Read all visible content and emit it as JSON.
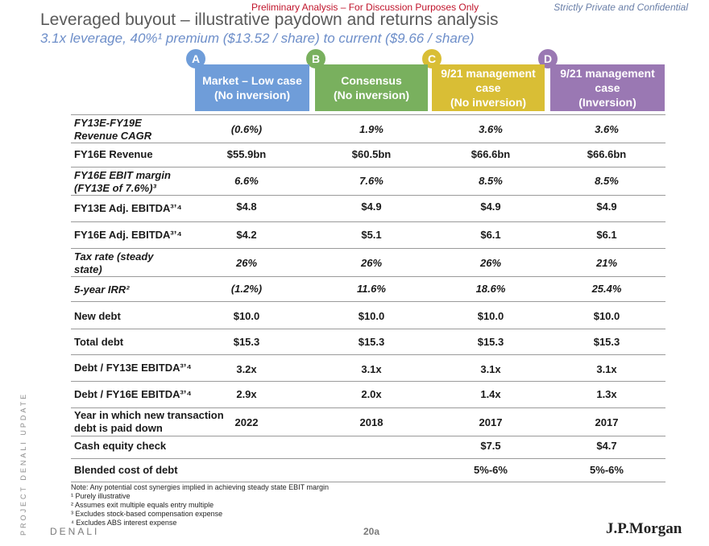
{
  "header": {
    "preliminary": "Preliminary Analysis – For Discussion Purposes Only",
    "confidential": "Strictly Private and Confidential",
    "title": "Leveraged buyout – illustrative paydown and returns analysis",
    "subtitle": "3.1x leverage, 40%¹ premium ($13.52 / share) to current ($9.66 / share)"
  },
  "columns": [
    {
      "badge": "A",
      "line1": "Market – Low case",
      "line2": "(No inversion)",
      "color": "#6f9dd9",
      "badge_color": "#6f9dd9"
    },
    {
      "badge": "B",
      "line1": "Consensus",
      "line2": "(No inversion)",
      "color": "#79b05e",
      "badge_color": "#79b05e"
    },
    {
      "badge": "C",
      "line1": "9/21 management case",
      "line2": "(No inversion)",
      "color": "#d9be35",
      "badge_color": "#d9be35"
    },
    {
      "badge": "D",
      "line1": "9/21 management case",
      "line2": "(Inversion)",
      "color": "#9a78b3",
      "badge_color": "#9a78b3"
    }
  ],
  "rows": [
    {
      "label": "FY13E-FY19E Revenue CAGR",
      "values": [
        "(0.6%)",
        "1.9%",
        "3.6%",
        "3.6%"
      ]
    },
    {
      "label": "FY16E Revenue",
      "values": [
        "$55.9bn",
        "$60.5bn",
        "$66.6bn",
        "$66.6bn"
      ]
    },
    {
      "label": "FY16E EBIT margin (FY13E of 7.6%)³",
      "values": [
        "6.6%",
        "7.6%",
        "8.5%",
        "8.5%"
      ]
    },
    {
      "label": "FY13E Adj. EBITDA³ʼ⁴",
      "values": [
        "$4.8",
        "$4.9",
        "$4.9",
        "$4.9"
      ]
    },
    {
      "label": "FY16E Adj. EBITDA³ʼ⁴",
      "values": [
        "$4.2",
        "$5.1",
        "$6.1",
        "$6.1"
      ]
    },
    {
      "label": "Tax rate (steady state)",
      "values": [
        "26%",
        "26%",
        "26%",
        "21%"
      ]
    },
    {
      "label": "5-year IRR²",
      "values": [
        "(1.2%)",
        "11.6%",
        "18.6%",
        "25.4%"
      ]
    },
    {
      "label": "New debt",
      "values": [
        "$10.0",
        "$10.0",
        "$10.0",
        "$10.0"
      ]
    },
    {
      "label": "Total debt",
      "values": [
        "$15.3",
        "$15.3",
        "$15.3",
        "$15.3"
      ]
    },
    {
      "label": "Debt / FY13E EBITDA³ʼ⁴",
      "values": [
        "3.2x",
        "3.1x",
        "3.1x",
        "3.1x"
      ]
    },
    {
      "label": "Debt / FY16E EBITDA³ʼ⁴",
      "values": [
        "2.9x",
        "2.0x",
        "1.4x",
        "1.3x"
      ]
    },
    {
      "label": "Year in which new transaction debt is paid down",
      "values": [
        "2022",
        "2018",
        "2017",
        "2017"
      ]
    },
    {
      "label": "Cash equity check",
      "values": [
        "",
        "",
        "$7.5",
        "$4.7"
      ]
    },
    {
      "label": "Blended cost of debt",
      "values": [
        "",
        "",
        "5%-6%",
        "5%-6%"
      ]
    }
  ],
  "notes": [
    "Note: Any potential cost synergies implied in achieving steady state EBIT margin",
    "¹ Purely illustrative",
    "² Assumes exit multiple equals entry multiple",
    "³ Excludes stock-based compensation expense",
    "⁴ Excludes ABS interest expense"
  ],
  "footer": {
    "side_text": "PROJECT DENALI UPDATE",
    "brand": "DENALI",
    "page": "20a",
    "logo": "J.P.Morgan"
  }
}
